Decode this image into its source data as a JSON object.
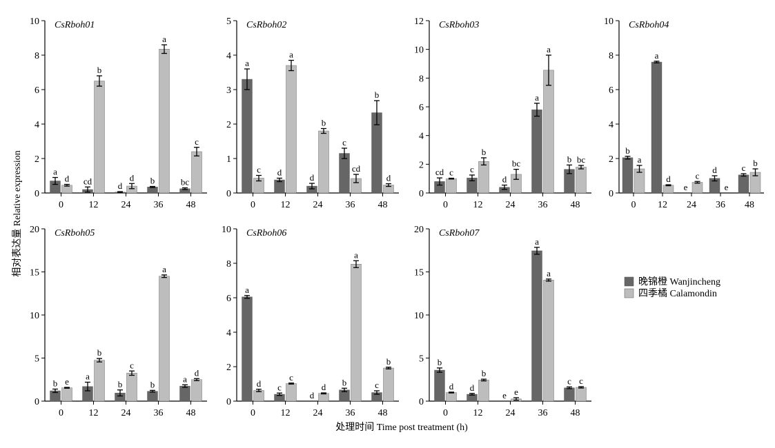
{
  "figure": {
    "ylabel": "相对表达量 Relative expression",
    "xlabel": "处理时间 Time post treatment (h)",
    "legend": [
      {
        "label": "晚锦橙 Wanjincheng",
        "color": "#666666"
      },
      {
        "label": "四季橘 Calamondin",
        "color": "#bdbdbd"
      }
    ]
  },
  "chart_data": [
    {
      "type": "bar",
      "title": "CsRboh01",
      "categories": [
        "0",
        "12",
        "24",
        "36",
        "48"
      ],
      "ylim": [
        0,
        10
      ],
      "yticks": [
        0,
        2,
        4,
        6,
        8,
        10
      ],
      "series": [
        {
          "name": "晚锦橙 Wanjincheng",
          "values": [
            0.7,
            0.2,
            0.05,
            0.35,
            0.25
          ],
          "errors": [
            0.2,
            0.15,
            0.03,
            0.03,
            0.05
          ],
          "letters": [
            "a",
            "cd",
            "d",
            "b",
            "bc"
          ]
        },
        {
          "name": "四季橘 Calamondin",
          "values": [
            0.45,
            6.5,
            0.4,
            8.35,
            2.4
          ],
          "errors": [
            0.05,
            0.3,
            0.15,
            0.25,
            0.25
          ],
          "letters": [
            "d",
            "b",
            "d",
            "a",
            "c"
          ]
        }
      ]
    },
    {
      "type": "bar",
      "title": "CsRboh02",
      "categories": [
        "0",
        "12",
        "24",
        "36",
        "48"
      ],
      "ylim": [
        0,
        5
      ],
      "yticks": [
        0,
        1,
        2,
        3,
        4,
        5
      ],
      "series": [
        {
          "name": "晚锦橙 Wanjincheng",
          "values": [
            3.3,
            0.38,
            0.2,
            1.15,
            2.33
          ],
          "errors": [
            0.3,
            0.05,
            0.08,
            0.15,
            0.35
          ],
          "letters": [
            "a",
            "d",
            "d",
            "c",
            "b"
          ]
        },
        {
          "name": "四季橘 Calamondin",
          "values": [
            0.43,
            3.7,
            1.8,
            0.42,
            0.23
          ],
          "errors": [
            0.08,
            0.15,
            0.07,
            0.12,
            0.04
          ],
          "letters": [
            "c",
            "a",
            "b",
            "cd",
            "d"
          ]
        }
      ]
    },
    {
      "type": "bar",
      "title": "CsRboh03",
      "categories": [
        "0",
        "12",
        "24",
        "36",
        "48"
      ],
      "ylim": [
        0,
        12
      ],
      "yticks": [
        0,
        2,
        4,
        6,
        8,
        10,
        12
      ],
      "series": [
        {
          "name": "晚锦橙 Wanjincheng",
          "values": [
            0.8,
            1.05,
            0.4,
            5.8,
            1.65
          ],
          "errors": [
            0.25,
            0.2,
            0.15,
            0.45,
            0.3
          ],
          "letters": [
            "cd",
            "c",
            "d",
            "a",
            "b"
          ]
        },
        {
          "name": "四季橘 Calamondin",
          "values": [
            1.0,
            2.2,
            1.3,
            8.55,
            1.8
          ],
          "errors": [
            0.03,
            0.25,
            0.35,
            1.05,
            0.12
          ],
          "letters": [
            "c",
            "b",
            "bc",
            "a",
            "bc"
          ]
        }
      ]
    },
    {
      "type": "bar",
      "title": "CsRboh04",
      "categories": [
        "0",
        "12",
        "24",
        "36",
        "48"
      ],
      "ylim": [
        0,
        10
      ],
      "yticks": [
        0,
        2,
        4,
        6,
        8,
        10
      ],
      "series": [
        {
          "name": "晚锦橙 Wanjincheng",
          "values": [
            2.05,
            7.6,
            0.0,
            0.85,
            1.05
          ],
          "errors": [
            0.08,
            0.05,
            0.0,
            0.15,
            0.07
          ],
          "letters": [
            "b",
            "a",
            "e",
            "d",
            "c"
          ]
        },
        {
          "name": "四季橘 Calamondin",
          "values": [
            1.4,
            0.45,
            0.62,
            0.0,
            1.2
          ],
          "errors": [
            0.2,
            0.03,
            0.05,
            0.0,
            0.2
          ],
          "letters": [
            "a",
            "d",
            "c",
            "e",
            "b"
          ]
        }
      ]
    },
    {
      "type": "bar",
      "title": "CsRboh05",
      "categories": [
        "0",
        "12",
        "24",
        "36",
        "48"
      ],
      "ylim": [
        0,
        20
      ],
      "yticks": [
        0,
        5,
        10,
        15,
        20
      ],
      "series": [
        {
          "name": "晚锦橙 Wanjincheng",
          "values": [
            1.2,
            1.7,
            0.95,
            1.15,
            1.75
          ],
          "errors": [
            0.2,
            0.5,
            0.35,
            0.1,
            0.15
          ],
          "letters": [
            "b",
            "a",
            "b",
            "b",
            "a"
          ]
        },
        {
          "name": "四季橘 Calamondin",
          "values": [
            1.55,
            4.75,
            3.25,
            14.5,
            2.5
          ],
          "errors": [
            0.05,
            0.2,
            0.25,
            0.15,
            0.12
          ],
          "letters": [
            "e",
            "b",
            "c",
            "a",
            "d"
          ]
        }
      ]
    },
    {
      "type": "bar",
      "title": "CsRboh06",
      "categories": [
        "0",
        "12",
        "24",
        "36",
        "48"
      ],
      "ylim": [
        0,
        10
      ],
      "yticks": [
        0,
        2,
        4,
        6,
        8,
        10
      ],
      "series": [
        {
          "name": "晚锦橙 Wanjincheng",
          "values": [
            6.05,
            0.4,
            0.0,
            0.65,
            0.5
          ],
          "errors": [
            0.08,
            0.07,
            0.0,
            0.1,
            0.1
          ],
          "letters": [
            "a",
            "c",
            "d",
            "b",
            "c"
          ]
        },
        {
          "name": "四季橘 Calamondin",
          "values": [
            0.62,
            1.02,
            0.45,
            7.95,
            1.92
          ],
          "errors": [
            0.07,
            0.03,
            0.03,
            0.2,
            0.05
          ],
          "letters": [
            "d",
            "c",
            "d",
            "a",
            "b"
          ]
        }
      ]
    },
    {
      "type": "bar",
      "title": "CsRboh07",
      "categories": [
        "0",
        "12",
        "24",
        "36",
        "48"
      ],
      "ylim": [
        0,
        20
      ],
      "yticks": [
        0,
        5,
        10,
        15,
        20
      ],
      "series": [
        {
          "name": "晚锦橙 Wanjincheng",
          "values": [
            3.6,
            0.8,
            0.0,
            17.45,
            1.55
          ],
          "errors": [
            0.25,
            0.1,
            0.0,
            0.4,
            0.1
          ],
          "letters": [
            "b",
            "d",
            "e",
            "a",
            "c"
          ]
        },
        {
          "name": "四季橘 Calamondin",
          "values": [
            1.0,
            2.45,
            0.25,
            14.05,
            1.6
          ],
          "errors": [
            0.05,
            0.1,
            0.15,
            0.12,
            0.08
          ],
          "letters": [
            "d",
            "b",
            "e",
            "a",
            "c"
          ]
        }
      ]
    }
  ]
}
